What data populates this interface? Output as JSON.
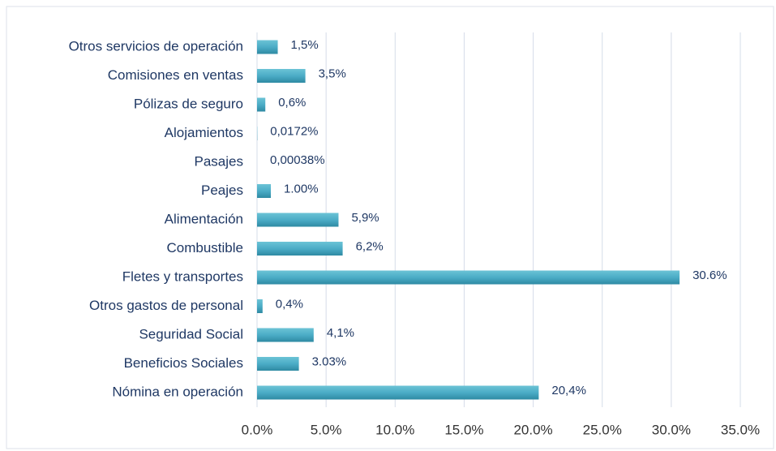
{
  "chart_data": {
    "type": "bar",
    "orientation": "horizontal",
    "categories": [
      "Otros servicios de operación",
      "Comisiones en ventas",
      "Pólizas de seguro",
      "Alojamientos",
      "Pasajes",
      "Peajes",
      "Alimentación",
      "Combustible",
      "Fletes y transportes",
      "Otros gastos de personal ",
      "Seguridad Social",
      "Beneficios Sociales",
      "Nómina en operación"
    ],
    "values": [
      1.5,
      3.5,
      0.6,
      0.0172,
      0.00038,
      1.0,
      5.9,
      6.2,
      30.6,
      0.4,
      4.1,
      3.03,
      20.4
    ],
    "value_labels": [
      "1,5%",
      "3,5%",
      "0,6%",
      "0,0172%",
      "0,00038%",
      "1.00%",
      "5,9%",
      "6,2%",
      "30.6%",
      "0,4%",
      "4,1%",
      "3.03%",
      "20,4%"
    ],
    "color": "#4bacc6",
    "xlim": [
      0,
      35
    ],
    "xticks": [
      {
        "value": 0,
        "label": "0.0%"
      },
      {
        "value": 5,
        "label": "5.0%"
      },
      {
        "value": 10,
        "label": "10.0%"
      },
      {
        "value": 15,
        "label": "15.0%"
      },
      {
        "value": 20,
        "label": "20.0%"
      },
      {
        "value": 25,
        "label": "25.0%"
      },
      {
        "value": 30,
        "label": "30.0%"
      },
      {
        "value": 35,
        "label": "35.0%"
      }
    ],
    "grid": true
  }
}
